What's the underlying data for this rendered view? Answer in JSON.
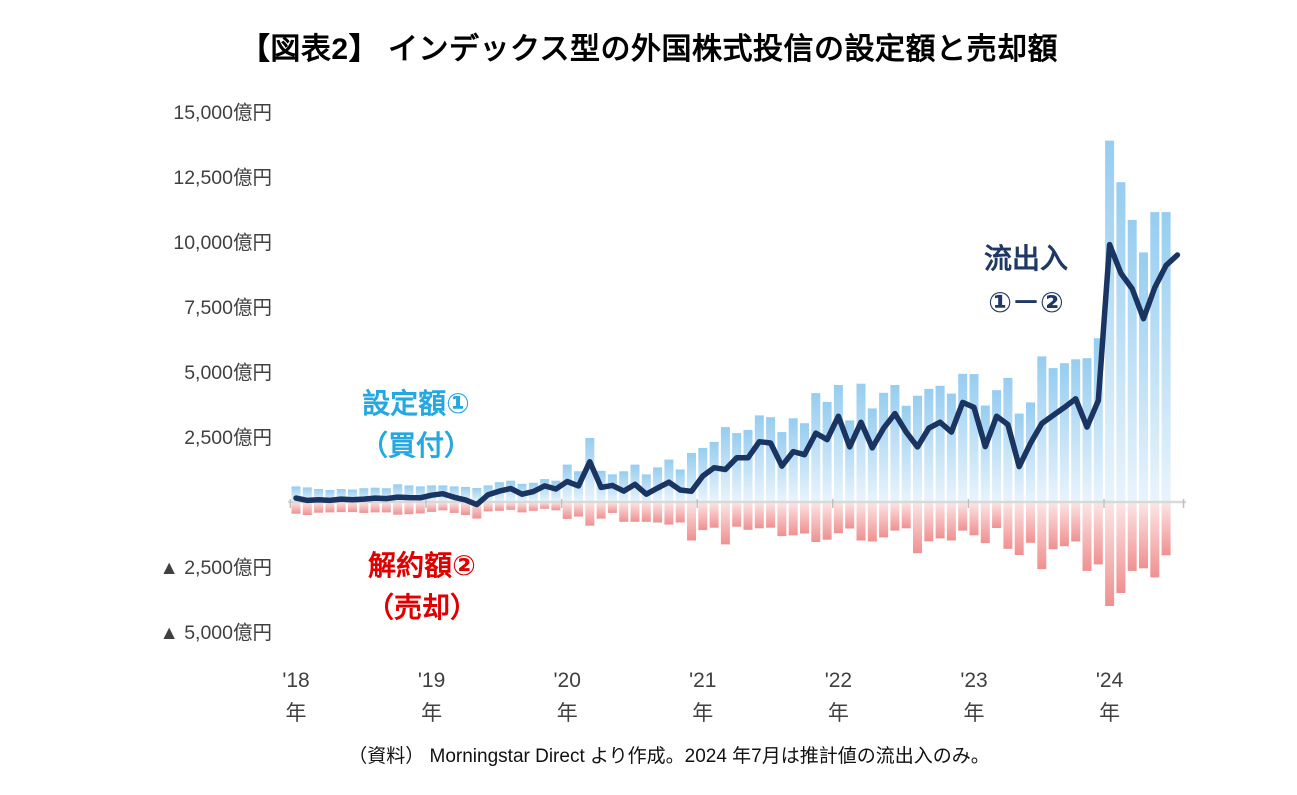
{
  "title": "【図表2】 インデックス型の外国株式投信の設定額と売却額",
  "footer": "（資料） Morningstar Direct より作成。2024 年7月は推計値の流出入のみ。",
  "annotations": {
    "buy_label": "設定額①",
    "buy_sub": "（買付）",
    "sell_label": "解約額②",
    "sell_sub": "（売却）",
    "net_label": "流出入",
    "net_sub": "①－②"
  },
  "colors": {
    "buy_bar_top": "#96cdf0",
    "buy_bar_bottom": "#e9f4fc",
    "sell_bar_top": "#fbe6e6",
    "sell_bar_bottom": "#f09090",
    "net_line": "#1a3561",
    "buy_text": "#25a8e2",
    "sell_text": "#e00000",
    "net_text": "#1f3864",
    "axis_text": "#404040",
    "zero_line": "#d9d9d9",
    "tick_mark": "#bfbfbf"
  },
  "chart_data": {
    "type": "bar+line combo",
    "unit": "億円",
    "period": "2018-01 to 2024-07 (monthly; 2024-07 has net-flow line only, no bars)",
    "y_axis": {
      "ticks": [
        15000,
        12500,
        10000,
        7500,
        5000,
        2500,
        -2500,
        -5000
      ],
      "tick_suffix": "億円",
      "negative_prefix": "▲ ",
      "range": [
        -5000,
        15000
      ],
      "grid": "off"
    },
    "x_axis": {
      "year_labels": [
        "'18",
        "'19",
        "'20",
        "'21",
        "'22",
        "'23",
        "'24"
      ],
      "year_suffix": "年"
    },
    "legend_position": "labels floated inside plot area",
    "series": [
      {
        "name": "設定額①（買付）",
        "type": "bar",
        "values": [
          600,
          560,
          500,
          460,
          500,
          480,
          530,
          550,
          530,
          680,
          640,
          600,
          640,
          640,
          600,
          580,
          540,
          640,
          760,
          820,
          700,
          740,
          880,
          820,
          1440,
          1180,
          2460,
          1200,
          1060,
          1180,
          1440,
          1060,
          1330,
          1630,
          1250,
          1890,
          2080,
          2310,
          2880,
          2650,
          2770,
          3330,
          3260,
          2690,
          3220,
          3030,
          4190,
          3850,
          4500,
          3140,
          4550,
          3600,
          4200,
          4500,
          3700,
          4090,
          4350,
          4470,
          4170,
          4930,
          4920,
          3710,
          4300,
          4775,
          3400,
          3830,
          5600,
          5150,
          5340,
          5490,
          5530,
          6300,
          13900,
          12300,
          10850,
          9600,
          11150,
          11150,
          null
        ]
      },
      {
        "name": "解約額②（売却）",
        "type": "bar",
        "values": [
          -450,
          -500,
          -410,
          -400,
          -390,
          -390,
          -420,
          -400,
          -400,
          -490,
          -470,
          -440,
          -380,
          -320,
          -420,
          -500,
          -640,
          -360,
          -340,
          -300,
          -400,
          -340,
          -260,
          -320,
          -650,
          -560,
          -910,
          -640,
          -420,
          -760,
          -760,
          -760,
          -790,
          -870,
          -790,
          -1480,
          -1080,
          -990,
          -1630,
          -950,
          -1070,
          -1010,
          -990,
          -1310,
          -1280,
          -1210,
          -1540,
          -1450,
          -1200,
          -1020,
          -1480,
          -1520,
          -1360,
          -1100,
          -1010,
          -1970,
          -1510,
          -1400,
          -1480,
          -1100,
          -1280,
          -1580,
          -1000,
          -1800,
          -2040,
          -1570,
          -2580,
          -1820,
          -1700,
          -1520,
          -2650,
          -2400,
          -4000,
          -3500,
          -2650,
          -2550,
          -2900,
          -2050,
          null
        ]
      },
      {
        "name": "流出入①－②",
        "type": "line",
        "values": [
          150,
          60,
          90,
          60,
          110,
          90,
          110,
          150,
          130,
          190,
          170,
          160,
          260,
          320,
          180,
          80,
          -100,
          280,
          420,
          520,
          300,
          400,
          620,
          500,
          790,
          620,
          1550,
          560,
          640,
          420,
          680,
          300,
          540,
          760,
          460,
          410,
          1000,
          1320,
          1250,
          1700,
          1700,
          2320,
          2270,
          1380,
          1940,
          1820,
          2650,
          2400,
          3300,
          2120,
          3070,
          2080,
          2840,
          3400,
          2690,
          2120,
          2840,
          3070,
          2690,
          3830,
          3640,
          2130,
          3300,
          2975,
          1360,
          2260,
          3020,
          3330,
          3640,
          3970,
          2880,
          3900,
          9900,
          8800,
          8200,
          7050,
          8250,
          9100,
          9500
        ]
      }
    ]
  }
}
